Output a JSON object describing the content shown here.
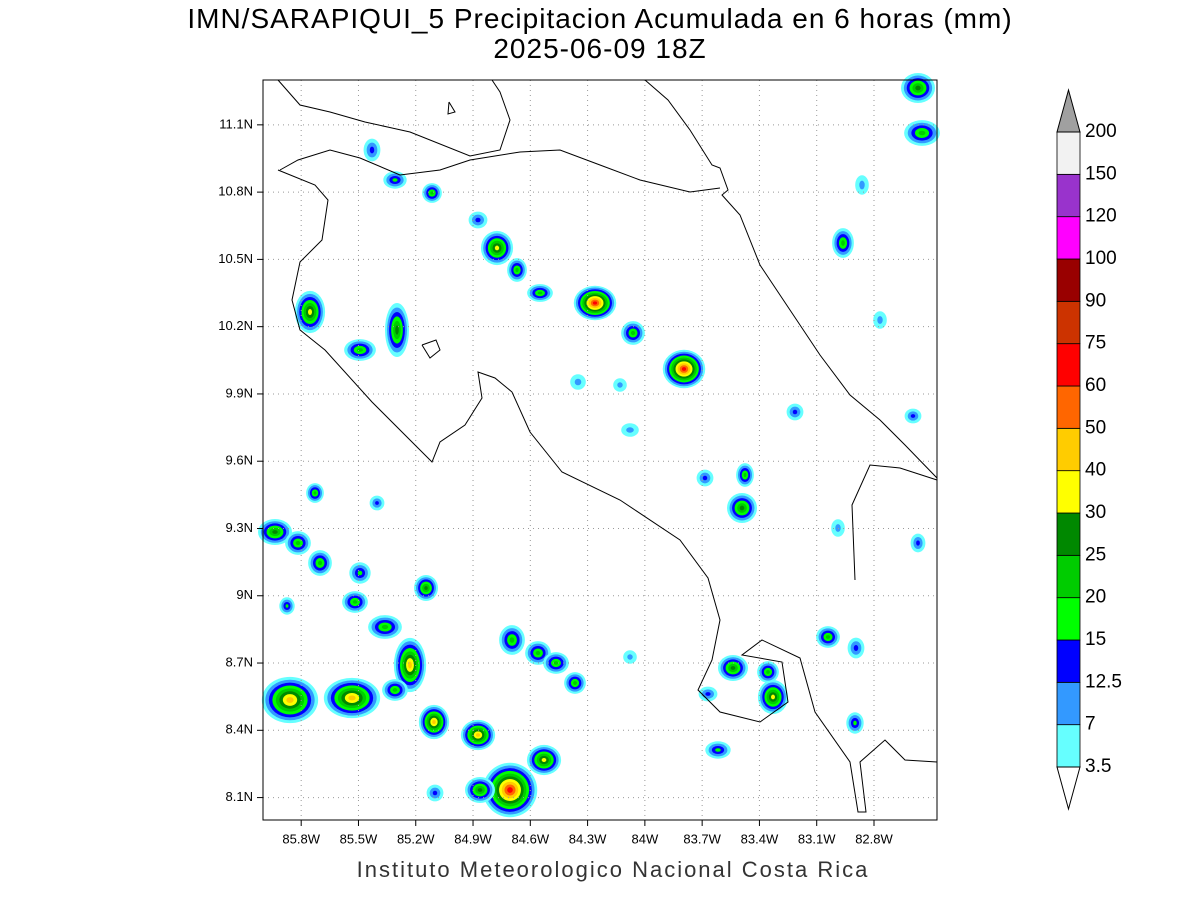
{
  "title": [
    "IMN/SARAPIQUI_5 Precipitacion Acumulada en 6 horas (mm)",
    "2025-06-09 18Z"
  ],
  "map": {
    "xlim": [
      -86.0,
      -82.47
    ],
    "ylim": [
      8.0,
      11.3
    ],
    "xticks": [
      {
        "value": -85.8,
        "label": "85.8W"
      },
      {
        "value": -85.5,
        "label": "85.5W"
      },
      {
        "value": -85.2,
        "label": "85.2W"
      },
      {
        "value": -84.9,
        "label": "84.9W"
      },
      {
        "value": -84.6,
        "label": "84.6W"
      },
      {
        "value": -84.3,
        "label": "84.3W"
      },
      {
        "value": -84.0,
        "label": "84W"
      },
      {
        "value": -83.7,
        "label": "83.7W"
      },
      {
        "value": -83.4,
        "label": "83.4W"
      },
      {
        "value": -83.1,
        "label": "83.1W"
      },
      {
        "value": -82.8,
        "label": "82.8W"
      }
    ],
    "yticks": [
      {
        "value": 8.1,
        "label": "8.1N"
      },
      {
        "value": 8.4,
        "label": "8.4N"
      },
      {
        "value": 8.7,
        "label": "8.7N"
      },
      {
        "value": 9.0,
        "label": "9N"
      },
      {
        "value": 9.3,
        "label": "9.3N"
      },
      {
        "value": 9.6,
        "label": "9.6N"
      },
      {
        "value": 9.9,
        "label": "9.9N"
      },
      {
        "value": 10.2,
        "label": "10.2N"
      },
      {
        "value": 10.5,
        "label": "10.5N"
      },
      {
        "value": 10.8,
        "label": "10.8N"
      },
      {
        "value": 11.1,
        "label": "11.1N"
      }
    ],
    "grid": true
  },
  "colorbar": {
    "levels": [
      3.5,
      7,
      12.5,
      15,
      20,
      25,
      30,
      40,
      50,
      60,
      75,
      90,
      100,
      120,
      150,
      200
    ],
    "colors": [
      "#66ffff",
      "#3399ff",
      "#0000ff",
      "#00ff00",
      "#00cc00",
      "#008800",
      "#ffff00",
      "#ffcc00",
      "#ff6600",
      "#ff0000",
      "#cc3300",
      "#990000",
      "#ff00ff",
      "#9933cc",
      "#f2f2f2"
    ],
    "over_color": "#a0a0a0",
    "under_color": "#ffffff"
  },
  "footer": "Instituto Meteorologico Nacional Costa Rica"
}
